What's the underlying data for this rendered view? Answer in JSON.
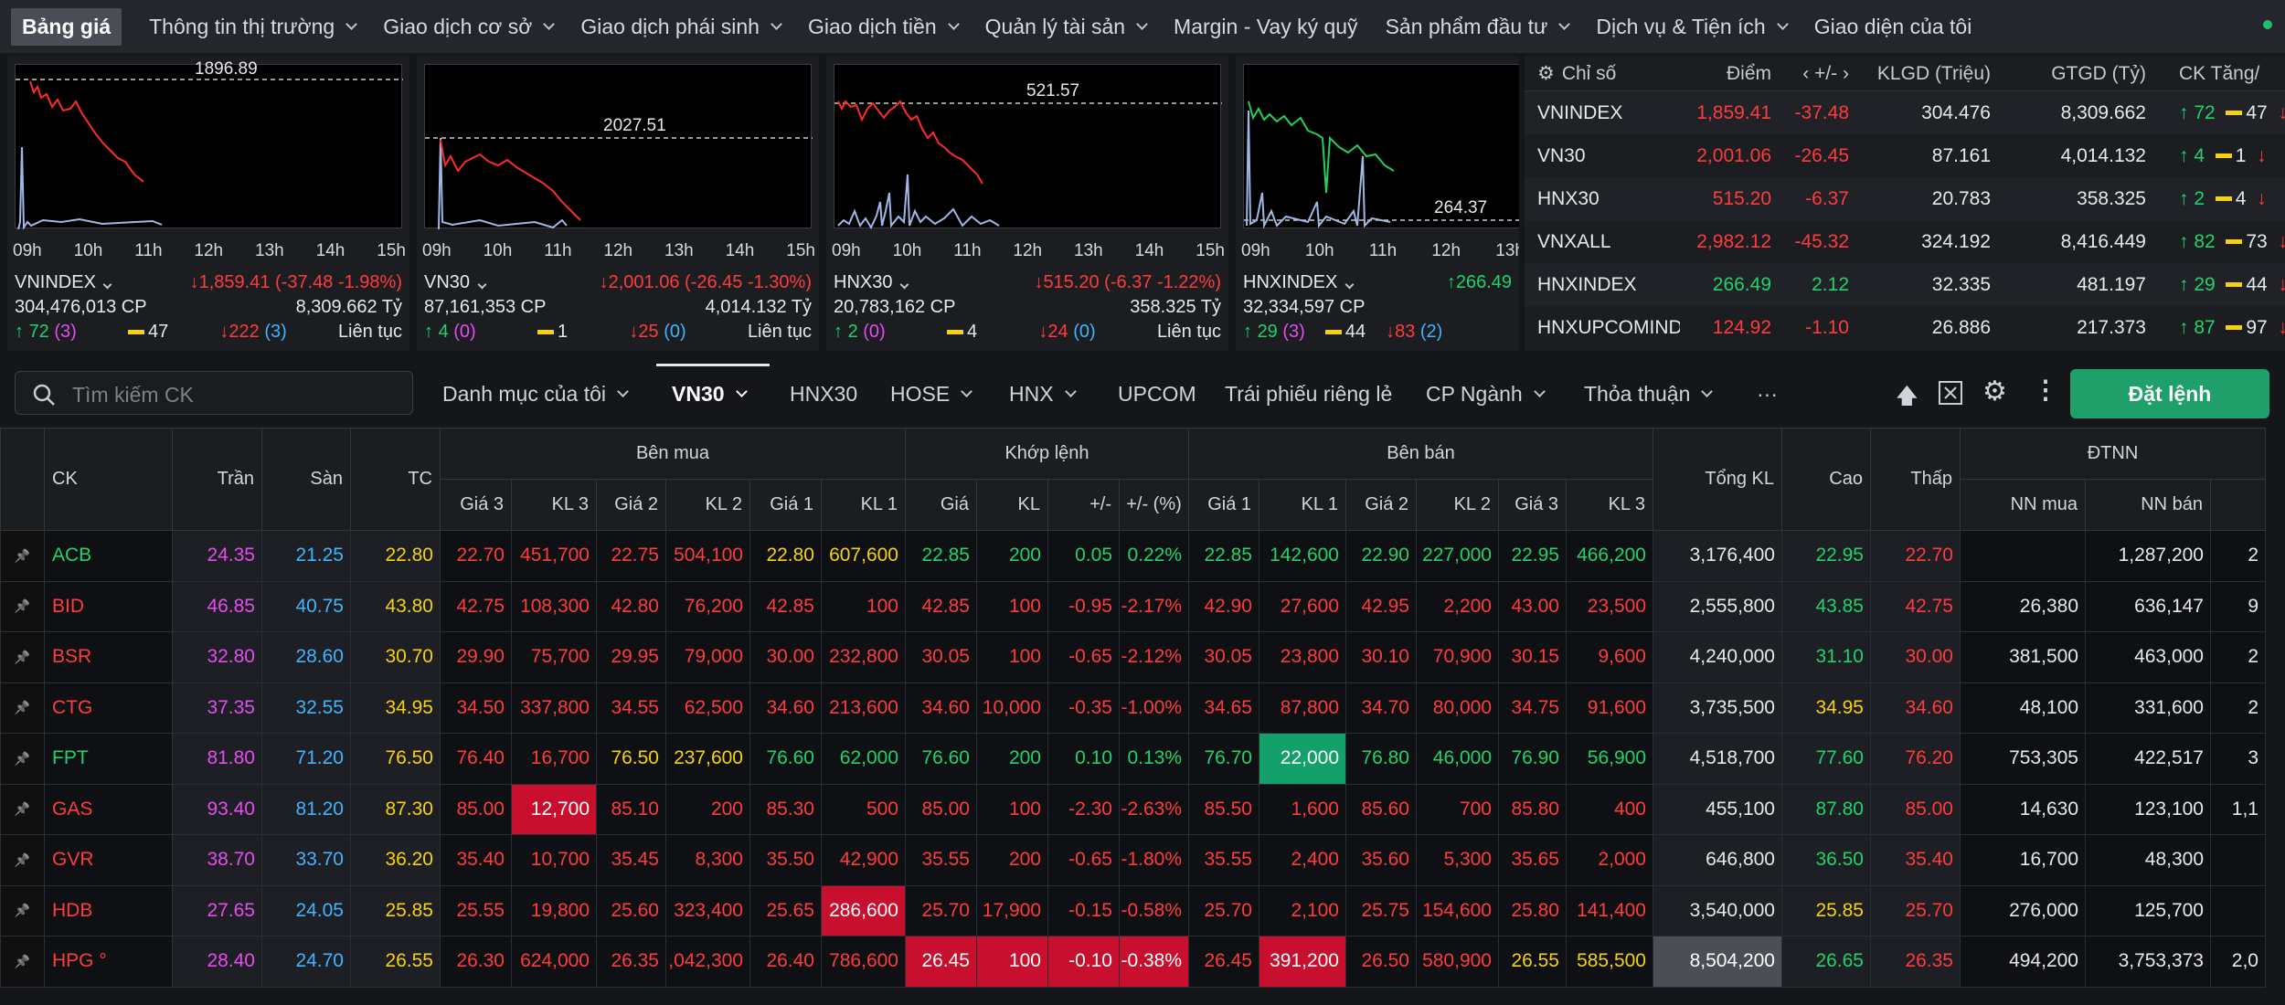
{
  "nav": {
    "items": [
      "Bảng giá",
      "Thông tin thị trường",
      "Giao dịch cơ sở",
      "Giao dịch phái sinh",
      "Giao dịch tiền",
      "Quản lý tài sản",
      "Margin - Vay ký quỹ",
      "Sản phẩm đầu tư",
      "Dịch vụ & Tiện ích",
      "Giao diện của tôi"
    ]
  },
  "hours": [
    "09h",
    "10h",
    "11h",
    "12h",
    "13h",
    "14h",
    "15h"
  ],
  "hours_short": [
    "09h",
    "10h",
    "11h",
    "12h",
    "13h"
  ],
  "panels": [
    {
      "ref_label": "1896.89",
      "name": "VNINDEX",
      "change": "1,859.41 (-37.48 -1.98%)",
      "volume": "304,476,013 CP",
      "value": "8,309.662 Tỷ",
      "up": "72",
      "up_ceil": "(3)",
      "ref": "47",
      "down": "222",
      "down_floor": "(3)",
      "status": "Liên tục"
    },
    {
      "ref_label": "2027.51",
      "name": "VN30",
      "change": "2,001.06 (-26.45 -1.30%)",
      "volume": "87,161,353 CP",
      "value": "4,014.132 Tỷ",
      "up": "4",
      "up_ceil": "(0)",
      "ref": "1",
      "down": "25",
      "down_floor": "(0)",
      "status": "Liên tục"
    },
    {
      "ref_label": "521.57",
      "name": "HNX30",
      "change": "515.20 (-6.37 -1.22%)",
      "volume": "20,783,162 CP",
      "value": "358.325 Tỷ",
      "up": "2",
      "up_ceil": "(0)",
      "ref": "4",
      "down": "24",
      "down_floor": "(0)",
      "status": "Liên tục"
    },
    {
      "ref_label": "264.37",
      "name": "HNXINDEX",
      "change": "266.49",
      "volume": "32,334,597 CP",
      "value": "",
      "up": "29",
      "up_ceil": "(3)",
      "ref": "44",
      "down": "83",
      "down_floor": "(2)",
      "status": ""
    }
  ],
  "index_table": {
    "headers": [
      "Chỉ số",
      "Điểm",
      "+/-",
      "KLGD (Triệu)",
      "GTGD (Tỷ)",
      "CK Tăng/"
    ],
    "rows": [
      {
        "name": "VNINDEX",
        "point": "1,859.41",
        "chg": "-37.48",
        "vol": "304.476",
        "val": "8,309.662",
        "up": "72",
        "ref": "47",
        "dir": "dn"
      },
      {
        "name": "VN30",
        "point": "2,001.06",
        "chg": "-26.45",
        "vol": "87.161",
        "val": "4,014.132",
        "up": "4",
        "ref": "1",
        "dir": "dn"
      },
      {
        "name": "HNX30",
        "point": "515.20",
        "chg": "-6.37",
        "vol": "20.783",
        "val": "358.325",
        "up": "2",
        "ref": "4",
        "dir": "dn"
      },
      {
        "name": "VNXALL",
        "point": "2,982.12",
        "chg": "-45.32",
        "vol": "324.192",
        "val": "8,416.449",
        "up": "82",
        "ref": "73",
        "dir": "dn"
      },
      {
        "name": "HNXINDEX",
        "point": "266.49",
        "chg": "2.12",
        "vol": "32.335",
        "val": "481.197",
        "up": "29",
        "ref": "44",
        "dir": "up"
      },
      {
        "name": "HNXUPCOMINDEX",
        "point": "124.92",
        "chg": "-1.10",
        "vol": "26.886",
        "val": "217.373",
        "up": "87",
        "ref": "97",
        "dir": "dn"
      }
    ]
  },
  "toolbar": {
    "search_placeholder": "Tìm kiếm CK",
    "tabs": [
      "Danh mục của tôi",
      "VN30",
      "HNX30",
      "HOSE",
      "HNX",
      "UPCOM",
      "Trái phiếu riêng lẻ",
      "CP Ngành",
      "Thỏa thuận",
      "···"
    ],
    "order_label": "Đặt lệnh"
  },
  "board": {
    "h_ck": "CK",
    "h_tran": "Trần",
    "h_san": "Sàn",
    "h_tc": "TC",
    "h_ben_mua": "Bên mua",
    "h_khop": "Khớp lệnh",
    "h_ben_ban": "Bên bán",
    "h_tong": "Tổng KL",
    "h_cao": "Cao",
    "h_thap": "Thấp",
    "h_dtnn": "ĐTNN",
    "sub": [
      "Giá 3",
      "KL 3",
      "Giá 2",
      "KL 2",
      "Giá 1",
      "KL 1",
      "Giá",
      "KL",
      "+/-",
      "+/- (%)",
      "Giá 1",
      "KL 1",
      "Giá 2",
      "KL 2",
      "Giá 3",
      "KL 3",
      "NN mua",
      "NN bán"
    ],
    "rows": [
      {
        "ck": "ACB",
        "tran": "24.35",
        "san": "21.25",
        "tc": "22.80",
        "b3": "22.70",
        "bk3": "451,700",
        "b2": "22.75",
        "bk2": "504,100",
        "b1": "22.80",
        "bk1": "607,600",
        "p": "22.85",
        "k": "200",
        "d": "0.05",
        "dp": "0.22%",
        "s1": "22.85",
        "sk1": "142,600",
        "s2": "22.90",
        "sk2": "227,000",
        "s3": "22.95",
        "sk3": "466,200",
        "tot": "3,176,400",
        "hi": "22.95",
        "lo": "22.70",
        "nnm": "",
        "nnb": "1,287,200",
        "ex": "2"
      },
      {
        "ck": "BID",
        "tran": "46.85",
        "san": "40.75",
        "tc": "43.80",
        "b3": "42.75",
        "bk3": "108,300",
        "b2": "42.80",
        "bk2": "76,200",
        "b1": "42.85",
        "bk1": "100",
        "p": "42.85",
        "k": "100",
        "d": "-0.95",
        "dp": "-2.17%",
        "s1": "42.90",
        "sk1": "27,600",
        "s2": "42.95",
        "sk2": "2,200",
        "s3": "43.00",
        "sk3": "23,500",
        "tot": "2,555,800",
        "hi": "43.85",
        "lo": "42.75",
        "nnm": "26,380",
        "nnb": "636,147",
        "ex": "9"
      },
      {
        "ck": "BSR",
        "tran": "32.80",
        "san": "28.60",
        "tc": "30.70",
        "b3": "29.90",
        "bk3": "75,700",
        "b2": "29.95",
        "bk2": "79,000",
        "b1": "30.00",
        "bk1": "232,800",
        "p": "30.05",
        "k": "100",
        "d": "-0.65",
        "dp": "-2.12%",
        "s1": "30.05",
        "sk1": "23,800",
        "s2": "30.10",
        "sk2": "70,900",
        "s3": "30.15",
        "sk3": "9,600",
        "tot": "4,240,000",
        "hi": "31.10",
        "lo": "30.00",
        "nnm": "381,500",
        "nnb": "463,000",
        "ex": "2"
      },
      {
        "ck": "CTG",
        "tran": "37.35",
        "san": "32.55",
        "tc": "34.95",
        "b3": "34.50",
        "bk3": "337,800",
        "b2": "34.55",
        "bk2": "62,500",
        "b1": "34.60",
        "bk1": "213,600",
        "p": "34.60",
        "k": "10,000",
        "d": "-0.35",
        "dp": "-1.00%",
        "s1": "34.65",
        "sk1": "87,800",
        "s2": "34.70",
        "sk2": "80,000",
        "s3": "34.75",
        "sk3": "91,600",
        "tot": "3,735,500",
        "hi": "34.95",
        "lo": "34.60",
        "nnm": "48,100",
        "nnb": "331,600",
        "ex": "2"
      },
      {
        "ck": "FPT",
        "tran": "81.80",
        "san": "71.20",
        "tc": "76.50",
        "b3": "76.40",
        "bk3": "16,700",
        "b2": "76.50",
        "bk2": "237,600",
        "b1": "76.60",
        "bk1": "62,000",
        "p": "76.60",
        "k": "200",
        "d": "0.10",
        "dp": "0.13%",
        "s1": "76.70",
        "sk1": "22,000",
        "s2": "76.80",
        "sk2": "46,000",
        "s3": "76.90",
        "sk3": "56,900",
        "tot": "4,518,700",
        "hi": "77.60",
        "lo": "76.20",
        "nnm": "753,305",
        "nnb": "422,517",
        "ex": "3"
      },
      {
        "ck": "GAS",
        "tran": "93.40",
        "san": "81.20",
        "tc": "87.30",
        "b3": "85.00",
        "bk3": "12,700",
        "b2": "85.10",
        "bk2": "200",
        "b1": "85.30",
        "bk1": "500",
        "p": "85.00",
        "k": "100",
        "d": "-2.30",
        "dp": "-2.63%",
        "s1": "85.50",
        "sk1": "1,600",
        "s2": "85.60",
        "sk2": "700",
        "s3": "85.80",
        "sk3": "400",
        "tot": "455,100",
        "hi": "87.80",
        "lo": "85.00",
        "nnm": "14,630",
        "nnb": "123,100",
        "ex": "1,1"
      },
      {
        "ck": "GVR",
        "tran": "38.70",
        "san": "33.70",
        "tc": "36.20",
        "b3": "35.40",
        "bk3": "10,700",
        "b2": "35.45",
        "bk2": "8,300",
        "b1": "35.50",
        "bk1": "42,900",
        "p": "35.55",
        "k": "200",
        "d": "-0.65",
        "dp": "-1.80%",
        "s1": "35.55",
        "sk1": "2,400",
        "s2": "35.60",
        "sk2": "5,300",
        "s3": "35.65",
        "sk3": "2,000",
        "tot": "646,800",
        "hi": "36.50",
        "lo": "35.40",
        "nnm": "16,700",
        "nnb": "48,300",
        "ex": ""
      },
      {
        "ck": "HDB",
        "tran": "27.65",
        "san": "24.05",
        "tc": "25.85",
        "b3": "25.55",
        "bk3": "19,800",
        "b2": "25.60",
        "bk2": "323,400",
        "b1": "25.65",
        "bk1": "286,600",
        "p": "25.70",
        "k": "17,900",
        "d": "-0.15",
        "dp": "-0.58%",
        "s1": "25.70",
        "sk1": "2,100",
        "s2": "25.75",
        "sk2": "154,600",
        "s3": "25.80",
        "sk3": "141,400",
        "tot": "3,540,000",
        "hi": "25.85",
        "lo": "25.70",
        "nnm": "276,000",
        "nnb": "125,700",
        "ex": ""
      },
      {
        "ck": "HPG °",
        "tran": "28.40",
        "san": "24.70",
        "tc": "26.55",
        "b3": "26.30",
        "bk3": "624,000",
        "b2": "26.35",
        "bk2": ",042,300",
        "b1": "26.40",
        "bk1": "786,600",
        "p": "26.45",
        "k": "100",
        "d": "-0.10",
        "dp": "-0.38%",
        "s1": "26.45",
        "sk1": "391,200",
        "s2": "26.50",
        "sk2": "580,900",
        "s3": "26.55",
        "sk3": "585,500",
        "tot": "8,504,200",
        "hi": "26.65",
        "lo": "26.35",
        "nnm": "494,200",
        "nnb": "3,753,373",
        "ex": "2,0"
      }
    ]
  },
  "colors": {
    "up": "#1fd36a",
    "down": "#ff3b3b",
    "ref": "#f5d20d",
    "ceiling": "#e44cf0",
    "floor": "#3fb4ff",
    "accent": "#1fa06a"
  }
}
